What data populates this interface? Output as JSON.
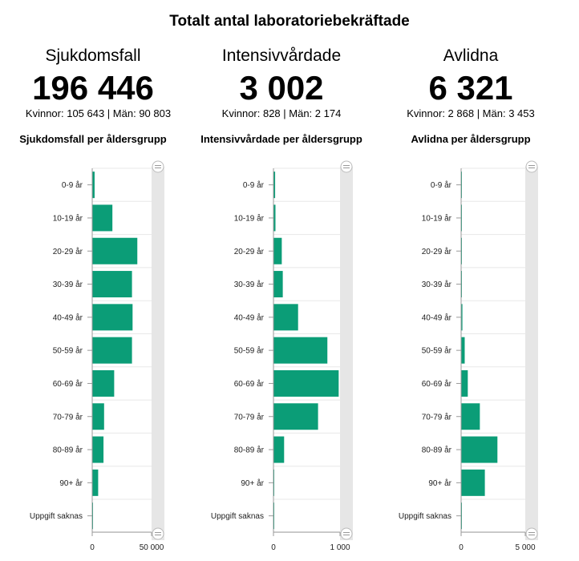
{
  "main_title": "Totalt antal laboratoriebekräftade",
  "panels": [
    {
      "title": "Sjukdomsfall",
      "total": "196 446",
      "subtitle": "Kvinnor: 105 643 | Män: 90 803",
      "chart_title": "Sjukdomsfall per åldersgrupp"
    },
    {
      "title": "Intensivvårdade",
      "total": "3 002",
      "subtitle": "Kvinnor: 828 | Män: 2 174",
      "chart_title": "Intensivvårdade per åldersgrupp"
    },
    {
      "title": "Avlidna",
      "total": "6 321",
      "subtitle": "Kvinnor: 2 868 | Män: 3 453",
      "chart_title": "Avlidna per åldersgrupp"
    }
  ],
  "colors": {
    "bar": "#0b9d77",
    "scrollbar": "#e6e6e6",
    "grid": "#e8e8e8",
    "axis": "#999999"
  },
  "chart_data": [
    {
      "type": "bar",
      "orientation": "horizontal",
      "title": "Sjukdomsfall per åldersgrupp",
      "categories": [
        "0-9 år",
        "10-19 år",
        "20-29 år",
        "30-39 år",
        "40-49 år",
        "50-59 år",
        "60-69 år",
        "70-79 år",
        "80-89 år",
        "90+ år",
        "Uppgift saknas"
      ],
      "values": [
        2000,
        17000,
        38000,
        33500,
        34000,
        33500,
        18500,
        10000,
        9500,
        5000,
        100
      ],
      "xlim": [
        0,
        50000
      ],
      "x_ticks": [
        "0",
        "50 000"
      ],
      "x_tick_values": [
        0,
        50000
      ]
    },
    {
      "type": "bar",
      "orientation": "horizontal",
      "title": "Intensivvårdade per åldersgrupp",
      "categories": [
        "0-9 år",
        "10-19 år",
        "20-29 år",
        "30-39 år",
        "40-49 år",
        "50-59 år",
        "60-69 år",
        "70-79 år",
        "80-89 år",
        "90+ år",
        "Uppgift saknas"
      ],
      "values": [
        25,
        30,
        125,
        140,
        370,
        810,
        980,
        670,
        160,
        5,
        2
      ],
      "xlim": [
        0,
        1000
      ],
      "x_ticks": [
        "0",
        "1 000"
      ],
      "x_tick_values": [
        0,
        1000
      ]
    },
    {
      "type": "bar",
      "orientation": "horizontal",
      "title": "Avlidna per åldersgrupp",
      "categories": [
        "0-9 år",
        "10-19 år",
        "20-29 år",
        "30-39 år",
        "40-49 år",
        "50-59 år",
        "60-69 år",
        "70-79 år",
        "80-89 år",
        "90+ år",
        "Uppgift saknas"
      ],
      "values": [
        2,
        5,
        20,
        40,
        100,
        280,
        520,
        1460,
        2830,
        1850,
        10
      ],
      "xlim": [
        0,
        5000
      ],
      "x_ticks": [
        "0",
        "5 000"
      ],
      "x_tick_values": [
        0,
        5000
      ]
    }
  ]
}
